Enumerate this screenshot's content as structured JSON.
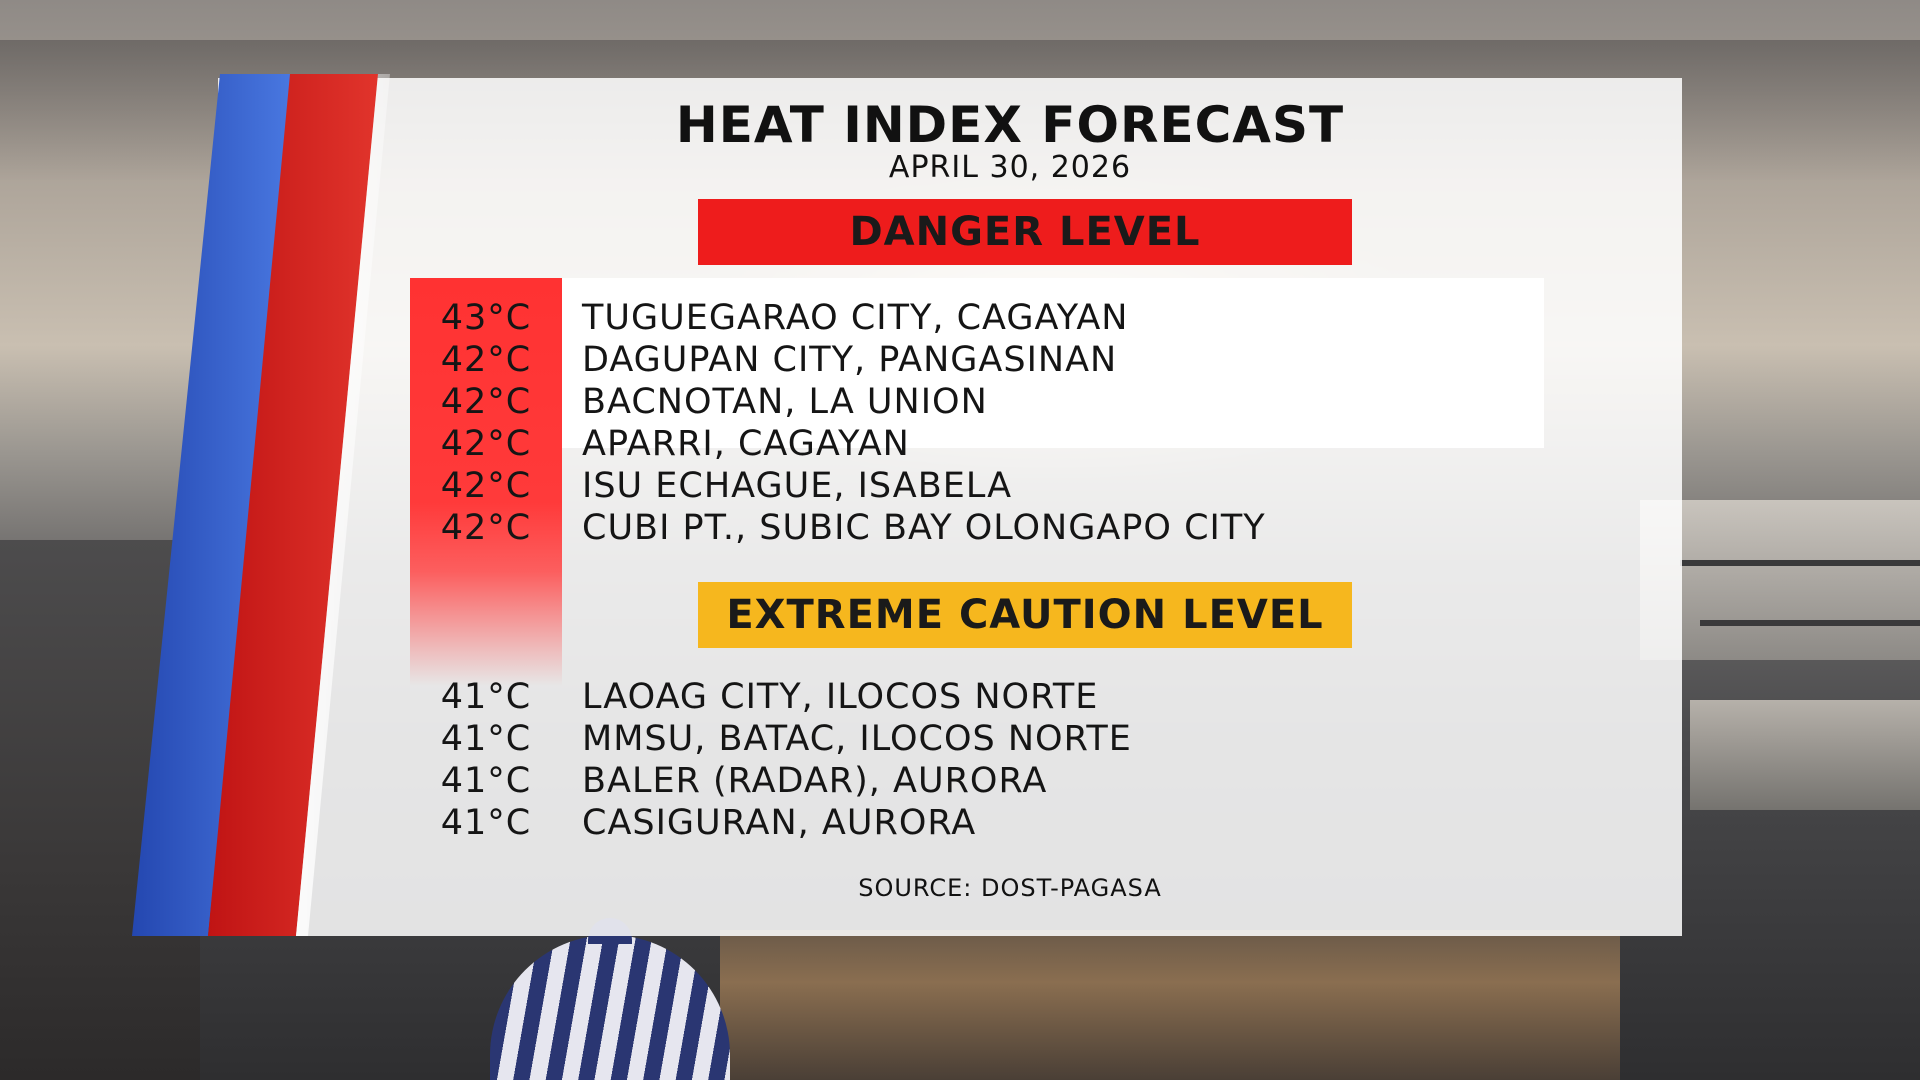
{
  "forecast": {
    "title": "HEAT INDEX FORECAST",
    "date": "APRIL 30, 2026",
    "danger": {
      "label": "DANGER LEVEL",
      "color": "#EE1C1C",
      "items": [
        {
          "temp": "43°C",
          "location": "TUGUEGARAO CITY, CAGAYAN"
        },
        {
          "temp": "42°C",
          "location": "DAGUPAN CITY, PANGASINAN"
        },
        {
          "temp": "42°C",
          "location": "BACNOTAN, LA UNION"
        },
        {
          "temp": "42°C",
          "location": "APARRI, CAGAYAN"
        },
        {
          "temp": "42°C",
          "location": "ISU ECHAGUE, ISABELA"
        },
        {
          "temp": "42°C",
          "location": "CUBI PT., SUBIC BAY OLONGAPO CITY"
        }
      ]
    },
    "caution": {
      "label": "EXTREME CAUTION LEVEL",
      "color": "#F6B71E",
      "items": [
        {
          "temp": "41°C",
          "location": "LAOAG CITY, ILOCOS NORTE"
        },
        {
          "temp": "41°C",
          "location": "MMSU, BATAC, ILOCOS NORTE"
        },
        {
          "temp": "41°C",
          "location": "BALER (RADAR), AURORA"
        },
        {
          "temp": "41°C",
          "location": "CASIGURAN, AURORA"
        }
      ]
    },
    "source": "SOURCE: DOST-PAGASA"
  },
  "accent_colors": {
    "blue_stripe": "#2447B0",
    "red_stripe": "#D42A22"
  }
}
